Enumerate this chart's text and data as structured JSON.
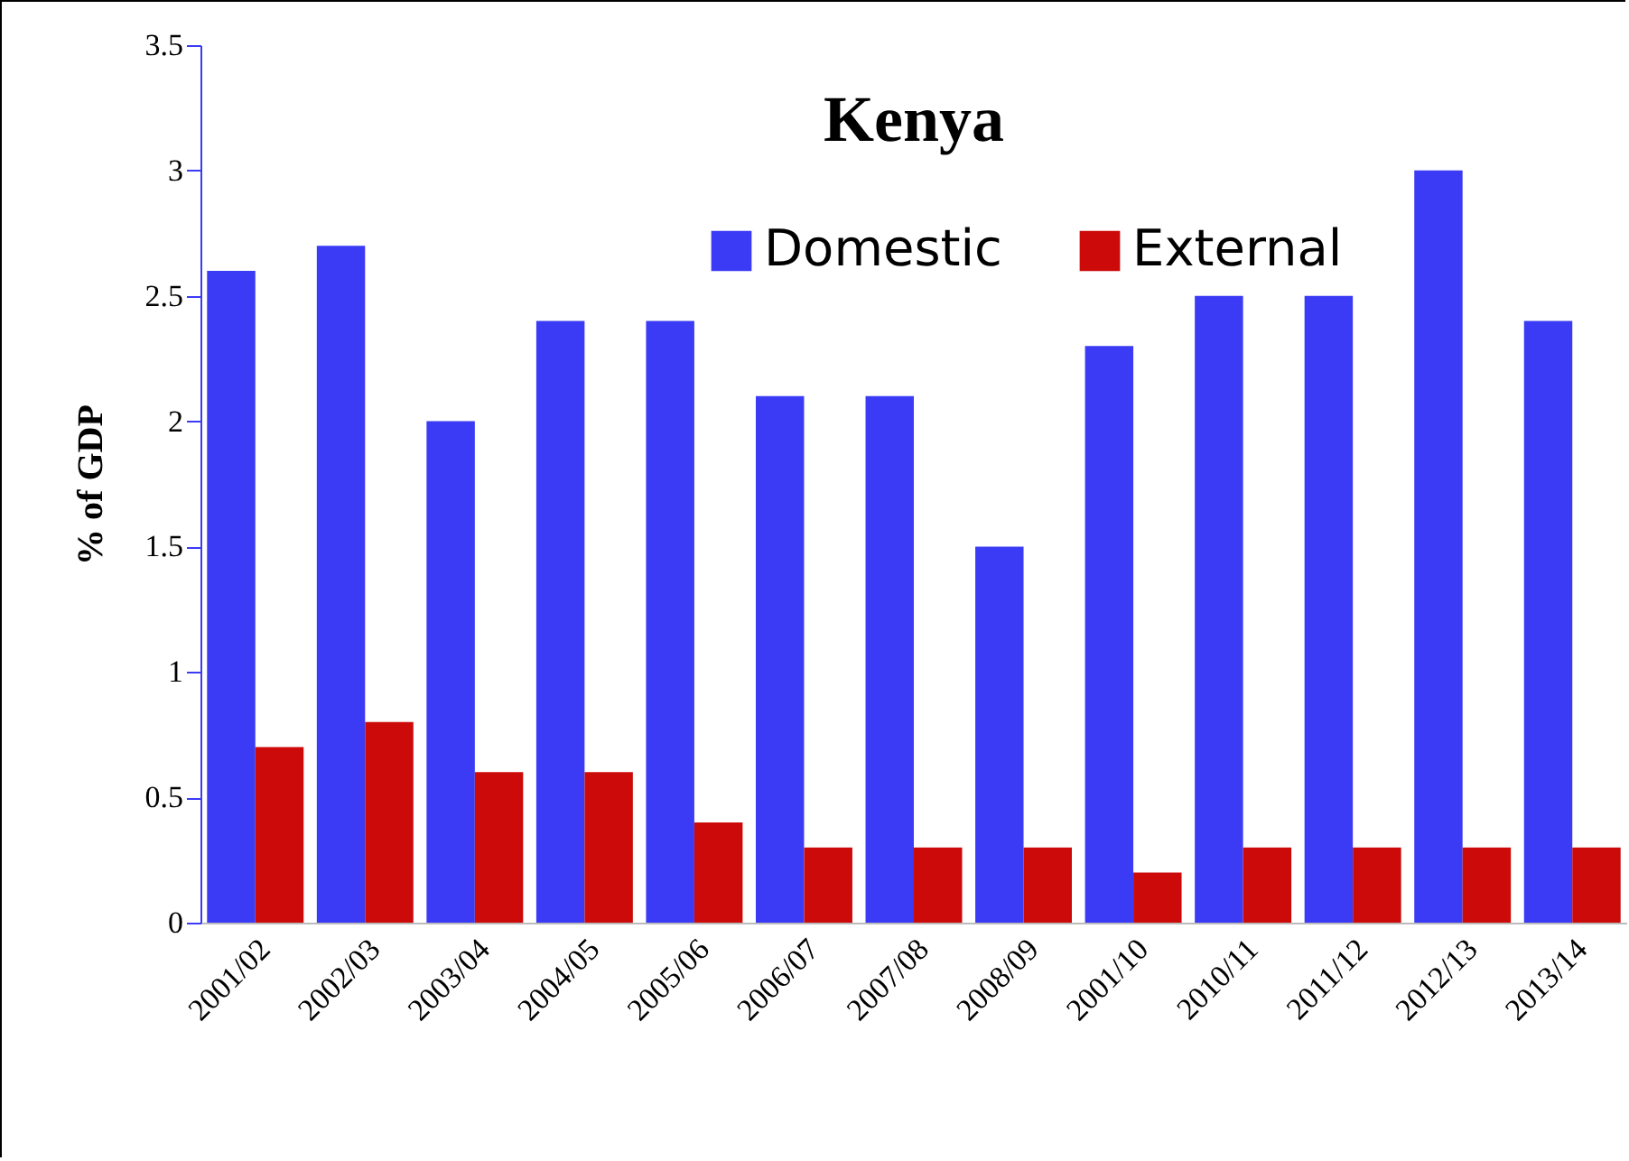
{
  "chart_data": {
    "type": "bar",
    "title": "Kenya",
    "ylabel": "% of GDP",
    "categories": [
      "2001/02",
      "2002/03",
      "2003/04",
      "2004/05",
      "2005/06",
      "2006/07",
      "2007/08",
      "2008/09",
      "2001/10",
      "2010/11",
      "2011/12",
      "2012/13",
      "2013/14"
    ],
    "series": [
      {
        "name": "Domestic",
        "color": "#3b3bf5",
        "values": [
          2.6,
          2.7,
          2.0,
          2.4,
          2.4,
          2.1,
          2.1,
          1.5,
          2.3,
          2.5,
          2.5,
          3.0,
          2.4
        ]
      },
      {
        "name": "External",
        "color": "#cc0a0a",
        "values": [
          0.7,
          0.8,
          0.6,
          0.6,
          0.4,
          0.3,
          0.3,
          0.3,
          0.2,
          0.3,
          0.3,
          0.3,
          0.3
        ]
      }
    ],
    "ylim": [
      0,
      3.5
    ],
    "yticks": [
      0,
      0.5,
      1,
      1.5,
      2,
      2.5,
      3,
      3.5
    ],
    "legend": "top",
    "grid": false
  }
}
